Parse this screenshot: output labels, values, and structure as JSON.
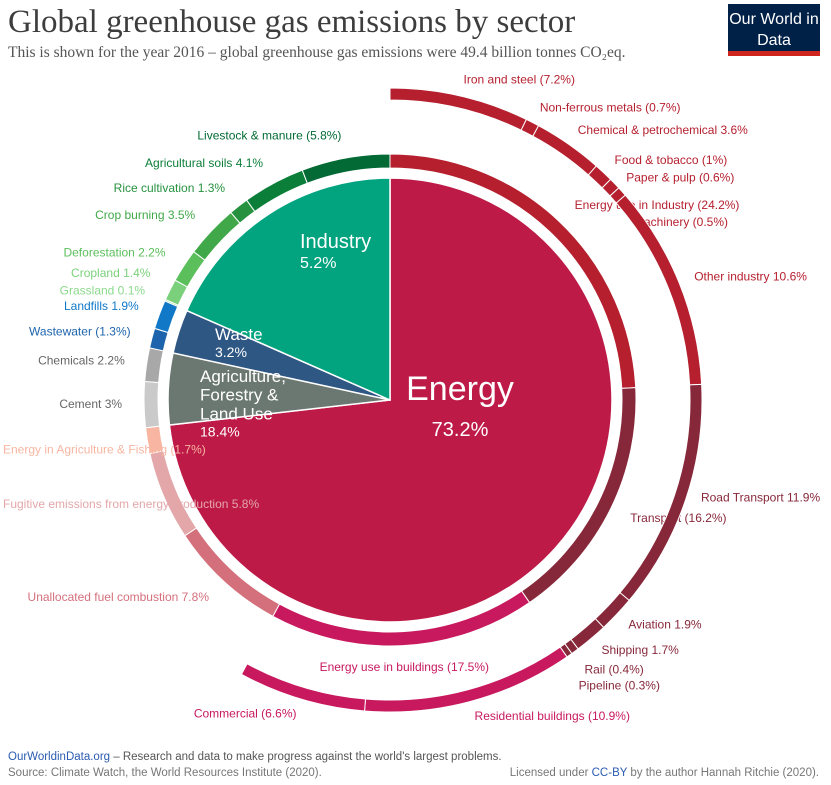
{
  "header": {
    "title": "Global greenhouse gas emissions by sector",
    "subtitle": "This is shown for the year 2016 – global greenhouse gas emissions were 49.4 billion tonnes CO₂eq.",
    "logo": "Our World in Data"
  },
  "footer": {
    "site": "OurWorldinData.org",
    "tagline": " – Research and data to make progress against the world's largest problems.",
    "source": "Source: Climate Watch, the World Resources Institute (2020).",
    "license_pre": "Licensed under ",
    "license": "CC-BY",
    "license_post": " by the author Hannah Ritchie (2020)."
  },
  "chart_data": {
    "type": "pie",
    "title": "Global greenhouse gas emissions by sector",
    "unit": "% of global emissions",
    "sectors": [
      {
        "name": "Energy",
        "value": 73.2,
        "label": "Energy",
        "pct": "73.2%",
        "color": "#be1a48"
      },
      {
        "name": "Industry",
        "value": 5.2,
        "label": "Industry",
        "pct": "5.2%",
        "color": "#6b7872"
      },
      {
        "name": "Waste",
        "value": 3.2,
        "label": "Waste",
        "pct": "3.2%",
        "color": "#2e5783"
      },
      {
        "name": "Agriculture, Forestry & Land Use",
        "value": 18.4,
        "label": "Agriculture, Forestry & Land Use",
        "pct": "18.4%",
        "color": "#02a37f"
      }
    ],
    "subsectors": [
      {
        "name": "Energy use in Industry",
        "value": 24.2,
        "label": "Energy use in Industry (24.2%)",
        "color": "#b51f2e"
      },
      {
        "name": "Transport",
        "value": 16.2,
        "label": "Transport (16.2%)",
        "color": "#87283a"
      },
      {
        "name": "Energy use in buildings",
        "value": 17.5,
        "label": "Energy use in buildings (17.5%)",
        "color": "#c8185e"
      },
      {
        "name": "Unallocated fuel combustion",
        "value": 7.8,
        "label": "Unallocated fuel combustion 7.8%",
        "color": "#d4707c"
      },
      {
        "name": "Fugitive emissions from energy production",
        "value": 5.8,
        "label": "Fugitive emissions from energy production 5.8%",
        "color": "#e3a7aa"
      },
      {
        "name": "Energy in Agriculture & Fishing",
        "value": 1.7,
        "label": "Energy in Agriculture & Fishing (1.7%)",
        "color": "#f8b6a2"
      },
      {
        "name": "Cement",
        "value": 3.0,
        "label": "Cement 3%",
        "color": "#cacaca"
      },
      {
        "name": "Chemicals",
        "value": 2.2,
        "label": "Chemicals 2.2%",
        "color": "#a8a8a8"
      },
      {
        "name": "Wastewater",
        "value": 1.3,
        "label": "Wastewater (1.3%)",
        "color": "#1e64ad"
      },
      {
        "name": "Landfills",
        "value": 1.9,
        "label": "Landfills 1.9%",
        "color": "#1178c8"
      },
      {
        "name": "Grassland",
        "value": 0.1,
        "label": "Grassland 0.1%",
        "color": "#8cd98c"
      },
      {
        "name": "Cropland",
        "value": 1.4,
        "label": "Cropland 1.4%",
        "color": "#7bd17b"
      },
      {
        "name": "Deforestation",
        "value": 2.2,
        "label": "Deforestation 2.2%",
        "color": "#5bbf5b"
      },
      {
        "name": "Crop burning",
        "value": 3.5,
        "label": "Crop burning 3.5%",
        "color": "#41a849"
      },
      {
        "name": "Rice cultivation",
        "value": 1.3,
        "label": "Rice cultivation 1.3%",
        "color": "#26923f"
      },
      {
        "name": "Agricultural soils",
        "value": 4.1,
        "label": "Agricultural soils 4.1%",
        "color": "#0b7e39"
      },
      {
        "name": "Livestock & manure",
        "value": 5.8,
        "label": "Livestock & manure (5.8%)",
        "color": "#036a35"
      }
    ],
    "details": [
      {
        "name": "Iron and steel",
        "value": 7.2,
        "label": "Iron and steel (7.2%)",
        "color": "#b51f2e"
      },
      {
        "name": "Non-ferrous metals",
        "value": 0.7,
        "label": "Non-ferrous metals (0.7%)",
        "color": "#b51f2e"
      },
      {
        "name": "Chemical & petrochemical",
        "value": 3.6,
        "label": "Chemical & petrochemical 3.6%",
        "color": "#b51f2e"
      },
      {
        "name": "Food & tobacco",
        "value": 1.0,
        "label": "Food & tobacco (1%)",
        "color": "#b51f2e"
      },
      {
        "name": "Paper & pulp",
        "value": 0.6,
        "label": "Paper & pulp (0.6%)",
        "color": "#b51f2e"
      },
      {
        "name": "Machinery",
        "value": 0.5,
        "label": "Machinery (0.5%)",
        "color": "#b51f2e"
      },
      {
        "name": "Other industry",
        "value": 10.6,
        "label": "Other industry 10.6%",
        "color": "#b51f2e"
      },
      {
        "name": "Road Transport",
        "value": 11.9,
        "label": "Road Transport 11.9%",
        "color": "#87283a"
      },
      {
        "name": "Aviation",
        "value": 1.9,
        "label": "Aviation 1.9%",
        "color": "#87283a"
      },
      {
        "name": "Shipping",
        "value": 1.7,
        "label": "Shipping 1.7%",
        "color": "#87283a"
      },
      {
        "name": "Rail",
        "value": 0.4,
        "label": "Rail (0.4%)",
        "color": "#87283a"
      },
      {
        "name": "Pipeline",
        "value": 0.3,
        "label": "Pipeline (0.3%)",
        "color": "#87283a"
      },
      {
        "name": "Residential buildings",
        "value": 10.9,
        "label": "Residential buildings (10.9%)",
        "color": "#c8185e"
      },
      {
        "name": "Commercial",
        "value": 6.6,
        "label": "Commercial (6.6%)",
        "color": "#c8185e"
      }
    ]
  }
}
